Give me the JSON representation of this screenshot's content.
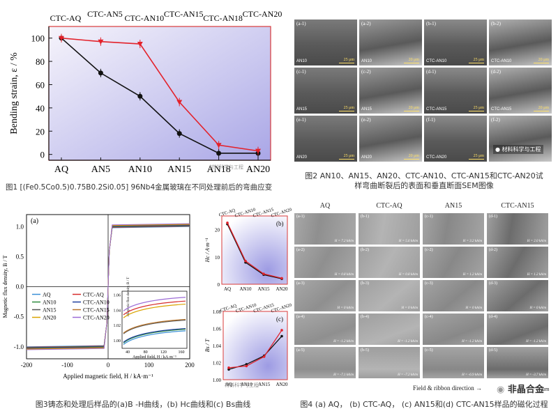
{
  "fig1": {
    "caption": "图1 [(Fe0.5Co0.5)0.75B0.2Si0.05] 96Nb4金属玻璃在不同处理前后的弯曲应变",
    "chart_data": {
      "type": "line",
      "categories": [
        "AQ",
        "AN5",
        "AN10",
        "AN15",
        "AN18",
        "AN20"
      ],
      "top_labels": [
        "CTC-AQ",
        "CTC-AN5",
        "CTC-AN10",
        "CTC-AN15",
        "CTC-AN18",
        "CTC-AN20"
      ],
      "ylabel": "Bending strain, ε / %",
      "ylim": [
        -5,
        110
      ],
      "yticks": [
        0,
        20,
        40,
        60,
        80,
        100
      ],
      "series": [
        {
          "values": [
            100,
            70,
            50,
            18,
            1,
            1
          ],
          "color": "#111111"
        },
        {
          "values": [
            100,
            97,
            95,
            45,
            8,
            3
          ],
          "color": "#e3222b"
        }
      ]
    }
  },
  "fig2": {
    "caption_line1": "图2 AN10、AN15、AN20、CTC-AN10、CTC-AN15和CTC-AN20试",
    "caption_line2": "样弯曲断裂后的表面和垂直断面SEM图像",
    "watermark": "材料科学与工程",
    "tiles": [
      {
        "label": "(a-1)",
        "name": "AN10",
        "scale": "25 μm"
      },
      {
        "label": "(a-2)",
        "name": "AN10",
        "scale": "20 μm"
      },
      {
        "label": "(b-1)",
        "name": "CTC-AN10",
        "scale": "25 μm"
      },
      {
        "label": "(b-2)",
        "name": "CTC-AN10",
        "scale": "20 μm"
      },
      {
        "label": "(c-1)",
        "name": "AN15",
        "scale": "25 μm"
      },
      {
        "label": "(c-2)",
        "name": "AN15",
        "scale": "20 μm"
      },
      {
        "label": "(d-1)",
        "name": "CTC-AN15",
        "scale": "25 μm"
      },
      {
        "label": "(d-2)",
        "name": "CTC-AN15",
        "scale": "20 μm"
      },
      {
        "label": "(e-1)",
        "name": "AN20",
        "scale": "25 μm"
      },
      {
        "label": "(e-2)",
        "name": "AN20",
        "scale": "20 μm"
      },
      {
        "label": "(f-1)",
        "name": "CTC-AN20",
        "scale": "25 μm"
      },
      {
        "label": "(f-2)",
        "name": "",
        "scale": ""
      }
    ]
  },
  "fig3": {
    "caption": "图3铸态和处理后样品的(a)B -H曲线，(b) Hc曲线和(c) Bs曲线",
    "panel_a": {
      "label": "(a)",
      "xlabel": "Applied magnetic field, H / kA·m⁻¹",
      "ylabel": "Magnetic flux density, B / T",
      "xticks": [
        "-200",
        "-100",
        "0",
        "100",
        "200"
      ],
      "yticks": [
        "1.0",
        "0.5",
        "0.0",
        "-0.5",
        "-1.0"
      ],
      "legend": [
        {
          "name": "AQ",
          "color": "#3a8fd6"
        },
        {
          "name": "CTC-AQ",
          "color": "#d62b2b"
        },
        {
          "name": "AN10",
          "color": "#2e8b3e"
        },
        {
          "name": "CTC-AN10",
          "color": "#1f3f9f"
        },
        {
          "name": "AN15",
          "color": "#555555"
        },
        {
          "name": "CTC-AN15",
          "color": "#b8742a"
        },
        {
          "name": "AN20",
          "color": "#d9a400"
        },
        {
          "name": "CTC-AN20",
          "color": "#9c6bd6"
        }
      ],
      "inset": {
        "ylabel": "Magnetic flux density, B / T",
        "xlabel": "Applied field, H / kA·m⁻¹",
        "yticks": [
          "1.06",
          "1.04",
          "1.02",
          "1.00"
        ],
        "xticks": [
          "40",
          "80",
          "120",
          "160"
        ]
      }
    },
    "panel_b": {
      "label": "(b)",
      "ylabel": "Hc / A·m⁻¹",
      "categories": [
        "AQ",
        "AN10",
        "AN15",
        "AN20"
      ],
      "top_labels": [
        "CTC-AQ",
        "CTC-AN10",
        "CTC-AN15",
        "CTC-AN20"
      ],
      "yticks": [
        "20",
        "10",
        "0"
      ],
      "chart_data": {
        "type": "line",
        "ylim": [
          0,
          25
        ],
        "series": [
          {
            "values": [
              22,
              8,
              3.5,
              2
            ],
            "color": "#111111"
          },
          {
            "values": [
              22.5,
              8.5,
              3.8,
              2.2
            ],
            "color": "#e3222b"
          }
        ]
      }
    },
    "panel_c": {
      "label": "(c)",
      "ylabel": "Bs / T",
      "categories": [
        "AQ",
        "AN10",
        "AN15",
        "AN20"
      ],
      "top_labels": [
        "CTC-AQ",
        "CTC-AN10",
        "CTC-AN15",
        "CTC-AN20"
      ],
      "yticks": [
        "1.08",
        "1.06",
        "1.04",
        "1.02",
        "1.00"
      ],
      "chart_data": {
        "type": "line",
        "ylim": [
          1.0,
          1.08
        ],
        "series": [
          {
            "values": [
              1.012,
              1.018,
              1.028,
              1.051
            ],
            "color": "#111111"
          },
          {
            "values": [
              1.014,
              1.016,
              1.027,
              1.058
            ],
            "color": "#e3222b"
          }
        ]
      }
    },
    "watermark": "材料科学与工程"
  },
  "fig4": {
    "caption": "图4 (a) AQ，  (b) CTC-AQ，  (c) AN15和(d) CTC-AN15样品的磁化过程",
    "headers": [
      "AQ",
      "CTC-AQ",
      "AN15",
      "CTC-AN15"
    ],
    "footer": "Field & ribbon direction",
    "footer_unit": "μm",
    "brand": "非晶合金",
    "rows": [
      [
        {
          "l": "(a-1)",
          "h": "H = 7.2 kA/m"
        },
        {
          "l": "(b-1)",
          "h": "H = 5.6 kA/m"
        },
        {
          "l": "(c-1)",
          "h": "H = 3.2 kA/m"
        },
        {
          "l": "(d-1)",
          "h": "H = 2.0 kA/m"
        }
      ],
      [
        {
          "l": "(a-2)",
          "h": "H = 0.8 kA/m"
        },
        {
          "l": "(b-2)",
          "h": "H = 0.8 kA/m"
        },
        {
          "l": "(c-2)",
          "h": "H = 1.2 kA/m"
        },
        {
          "l": "(d-2)",
          "h": "H = 1.2 kA/m"
        }
      ],
      [
        {
          "l": "(a-3)",
          "h": "H = 0 kA/m"
        },
        {
          "l": "(b-3)",
          "h": "H = 0 kA/m"
        },
        {
          "l": "(c-3)",
          "h": "H = 0 kA/m"
        },
        {
          "l": "(d-3)",
          "h": "H = 0 kA/m"
        }
      ],
      [
        {
          "l": "(a-4)",
          "h": "H = -1.2 kA/m"
        },
        {
          "l": "(b-4)",
          "h": "H = -1.2 kA/m"
        },
        {
          "l": "(c-4)",
          "h": "H = -1.2 kA/m"
        },
        {
          "l": "(d-4)",
          "h": "H = -1.2 kA/m"
        }
      ],
      [
        {
          "l": "(a-5)",
          "h": "H = -7.1 kA/m"
        },
        {
          "l": "(b-5)",
          "h": "H = -7.2 kA/m"
        },
        {
          "l": "(c-5)",
          "h": "H = -6.9 kA/m"
        },
        {
          "l": "(d-5)",
          "h": "H = -3.7 kA/m"
        }
      ]
    ]
  }
}
